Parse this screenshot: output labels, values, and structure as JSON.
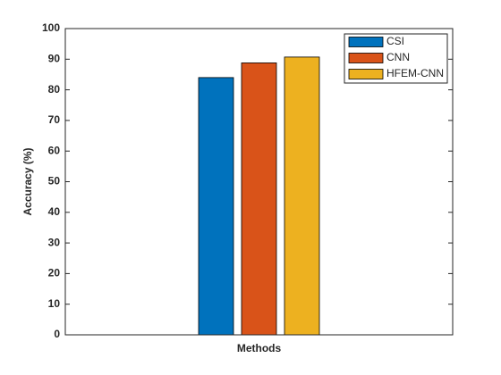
{
  "chart_data": {
    "type": "bar",
    "xlabel": "Methods",
    "ylabel": "Accuracy (%)",
    "categories": [
      null
    ],
    "series": [
      {
        "name": "CSI",
        "color": "#0072bd",
        "values": [
          84
        ]
      },
      {
        "name": "CNN",
        "color": "#d95319",
        "values": [
          88.8
        ]
      },
      {
        "name": "HFEM-CNN",
        "color": "#edb120",
        "values": [
          90.7
        ]
      }
    ],
    "ylim": [
      0,
      100
    ],
    "yticks": [
      0,
      10,
      20,
      30,
      40,
      50,
      60,
      70,
      80,
      90,
      100
    ],
    "legend": "northeast"
  }
}
